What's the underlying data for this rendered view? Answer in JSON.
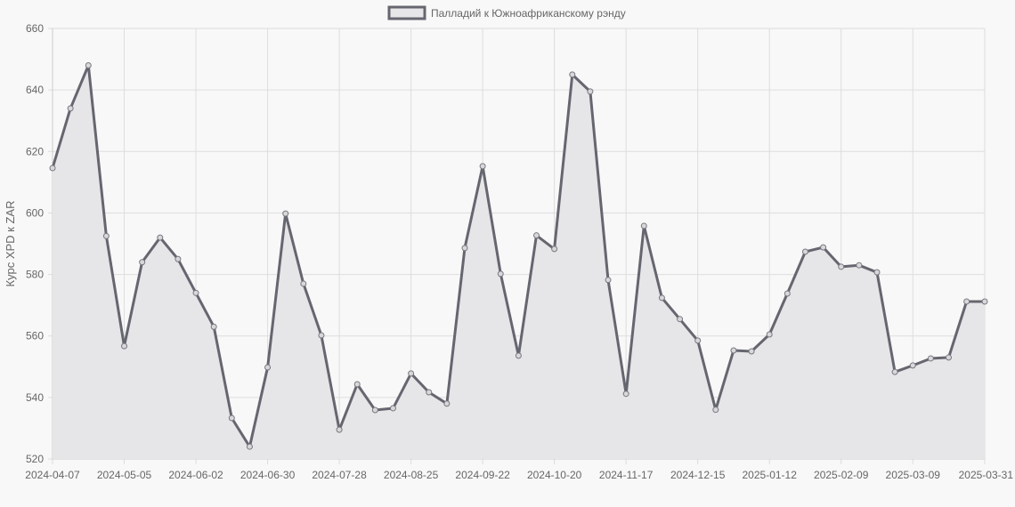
{
  "chart_data": {
    "type": "line",
    "title": "",
    "legend": {
      "label": "Палладий к Южноафриканскому рэнду",
      "position": "top"
    },
    "xlabel": "",
    "ylabel": "Курс XPD к ZAR",
    "ylim": [
      520,
      660
    ],
    "yticks": [
      520,
      540,
      560,
      580,
      600,
      620,
      640,
      660
    ],
    "xticks": [
      "2024-04-07",
      "2024-05-05",
      "2024-06-02",
      "2024-06-30",
      "2024-07-28",
      "2024-08-25",
      "2024-09-22",
      "2024-10-20",
      "2024-11-17",
      "2024-12-15",
      "2025-01-12",
      "2025-02-09",
      "2025-03-09",
      "2025-03-31"
    ],
    "grid": true,
    "fill": true,
    "colors": {
      "line": "#666670",
      "fill": "#e6e6e8",
      "grid": "#dddddd",
      "background": "#f8f8f8"
    },
    "series": [
      {
        "name": "Палладий к Южноафриканскому рэнду",
        "values": [
          614.6,
          634.0,
          648.0,
          592.5,
          556.7,
          584.0,
          592.0,
          585.0,
          574.0,
          563.0,
          533.3,
          524.0,
          549.8,
          599.8,
          577.0,
          560.2,
          529.5,
          544.3,
          535.9,
          536.5,
          547.8,
          541.7,
          538.0,
          588.6,
          615.2,
          580.2,
          553.6,
          592.7,
          588.3,
          645.0,
          639.5,
          578.2,
          541.2,
          595.8,
          572.4,
          565.5,
          558.5,
          536.0,
          555.3,
          555.0,
          560.5,
          573.8,
          587.4,
          588.8,
          582.5,
          583.0,
          580.7,
          548.3,
          550.4,
          552.7,
          553.0,
          571.2,
          571.2
        ]
      }
    ]
  }
}
